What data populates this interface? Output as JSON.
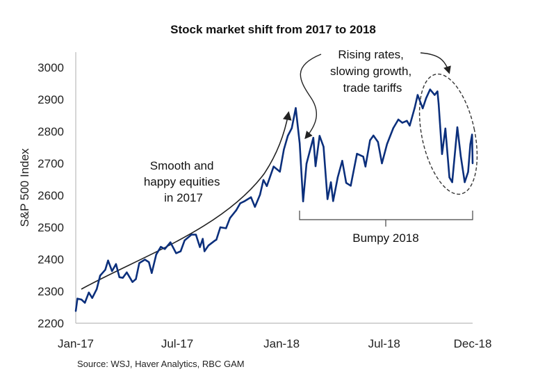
{
  "chart_data": {
    "type": "line",
    "title": "Stock market shift from 2017 to 2018",
    "xlabel": "",
    "ylabel": "S&P 500 Index",
    "ylim": [
      2200,
      3000
    ],
    "yticks": [
      2200,
      2300,
      2400,
      2500,
      2600,
      2700,
      2800,
      2900,
      3000
    ],
    "xlim": [
      "2017-01-03",
      "2018-12-04"
    ],
    "xticks": [
      {
        "label": "Jan-17",
        "date": "2017-01-03"
      },
      {
        "label": "Jul-17",
        "date": "2017-07-01"
      },
      {
        "label": "Jan-18",
        "date": "2018-01-01"
      },
      {
        "label": "Jul-18",
        "date": "2018-07-01"
      },
      {
        "label": "Dec-18",
        "date": "2018-12-04"
      }
    ],
    "grid": false,
    "line_color": "#0b2f7c",
    "series": [
      {
        "points": [
          [
            "2017-01-03",
            2238
          ],
          [
            "2017-01-06",
            2277
          ],
          [
            "2017-01-13",
            2274
          ],
          [
            "2017-01-19",
            2264
          ],
          [
            "2017-01-26",
            2296
          ],
          [
            "2017-02-01",
            2279
          ],
          [
            "2017-02-09",
            2307
          ],
          [
            "2017-02-15",
            2349
          ],
          [
            "2017-02-24",
            2367
          ],
          [
            "2017-03-01",
            2396
          ],
          [
            "2017-03-08",
            2363
          ],
          [
            "2017-03-15",
            2385
          ],
          [
            "2017-03-21",
            2344
          ],
          [
            "2017-03-27",
            2342
          ],
          [
            "2017-04-03",
            2359
          ],
          [
            "2017-04-13",
            2329
          ],
          [
            "2017-04-19",
            2338
          ],
          [
            "2017-04-25",
            2388
          ],
          [
            "2017-05-05",
            2399
          ],
          [
            "2017-05-12",
            2391
          ],
          [
            "2017-05-17",
            2357
          ],
          [
            "2017-05-25",
            2415
          ],
          [
            "2017-06-02",
            2439
          ],
          [
            "2017-06-09",
            2432
          ],
          [
            "2017-06-19",
            2453
          ],
          [
            "2017-06-29",
            2419
          ],
          [
            "2017-07-07",
            2425
          ],
          [
            "2017-07-14",
            2459
          ],
          [
            "2017-07-26",
            2477
          ],
          [
            "2017-08-03",
            2477
          ],
          [
            "2017-08-10",
            2438
          ],
          [
            "2017-08-15",
            2464
          ],
          [
            "2017-08-18",
            2425
          ],
          [
            "2017-08-25",
            2443
          ],
          [
            "2017-09-05",
            2458
          ],
          [
            "2017-09-08",
            2461
          ],
          [
            "2017-09-15",
            2500
          ],
          [
            "2017-09-25",
            2497
          ],
          [
            "2017-10-02",
            2529
          ],
          [
            "2017-10-13",
            2553
          ],
          [
            "2017-10-20",
            2575
          ],
          [
            "2017-10-27",
            2581
          ],
          [
            "2017-11-08",
            2594
          ],
          [
            "2017-11-15",
            2564
          ],
          [
            "2017-11-24",
            2602
          ],
          [
            "2017-11-30",
            2648
          ],
          [
            "2017-12-06",
            2629
          ],
          [
            "2017-12-18",
            2690
          ],
          [
            "2017-12-29",
            2674
          ],
          [
            "2018-01-05",
            2743
          ],
          [
            "2018-01-12",
            2786
          ],
          [
            "2018-01-19",
            2810
          ],
          [
            "2018-01-26",
            2873
          ],
          [
            "2018-02-02",
            2762
          ],
          [
            "2018-02-08",
            2581
          ],
          [
            "2018-02-14",
            2699
          ],
          [
            "2018-02-26",
            2780
          ],
          [
            "2018-03-02",
            2691
          ],
          [
            "2018-03-09",
            2786
          ],
          [
            "2018-03-16",
            2752
          ],
          [
            "2018-03-23",
            2588
          ],
          [
            "2018-03-29",
            2641
          ],
          [
            "2018-04-02",
            2582
          ],
          [
            "2018-04-10",
            2656
          ],
          [
            "2018-04-18",
            2708
          ],
          [
            "2018-04-25",
            2639
          ],
          [
            "2018-05-03",
            2630
          ],
          [
            "2018-05-14",
            2730
          ],
          [
            "2018-05-25",
            2721
          ],
          [
            "2018-05-29",
            2690
          ],
          [
            "2018-06-06",
            2772
          ],
          [
            "2018-06-12",
            2787
          ],
          [
            "2018-06-20",
            2767
          ],
          [
            "2018-06-27",
            2700
          ],
          [
            "2018-07-06",
            2760
          ],
          [
            "2018-07-17",
            2810
          ],
          [
            "2018-07-26",
            2837
          ],
          [
            "2018-08-02",
            2827
          ],
          [
            "2018-08-10",
            2833
          ],
          [
            "2018-08-15",
            2818
          ],
          [
            "2018-08-24",
            2875
          ],
          [
            "2018-08-29",
            2914
          ],
          [
            "2018-09-07",
            2872
          ],
          [
            "2018-09-13",
            2904
          ],
          [
            "2018-09-20",
            2931
          ],
          [
            "2018-09-28",
            2914
          ],
          [
            "2018-10-03",
            2925
          ],
          [
            "2018-10-05",
            2886
          ],
          [
            "2018-10-11",
            2729
          ],
          [
            "2018-10-17",
            2809
          ],
          [
            "2018-10-24",
            2656
          ],
          [
            "2018-10-29",
            2641
          ],
          [
            "2018-11-07",
            2813
          ],
          [
            "2018-11-13",
            2723
          ],
          [
            "2018-11-20",
            2641
          ],
          [
            "2018-11-26",
            2673
          ],
          [
            "2018-11-30",
            2760
          ],
          [
            "2018-12-03",
            2790
          ],
          [
            "2018-12-04",
            2700
          ]
        ]
      }
    ],
    "annotations": {
      "smooth": [
        "Smooth and",
        "happy equities",
        "in 2017"
      ],
      "rising": [
        "Rising rates,",
        "slowing growth,",
        "trade tariffs"
      ],
      "bumpy": "Bumpy 2018"
    },
    "source": "Source: WSJ, Haver Analytics, RBC GAM"
  }
}
